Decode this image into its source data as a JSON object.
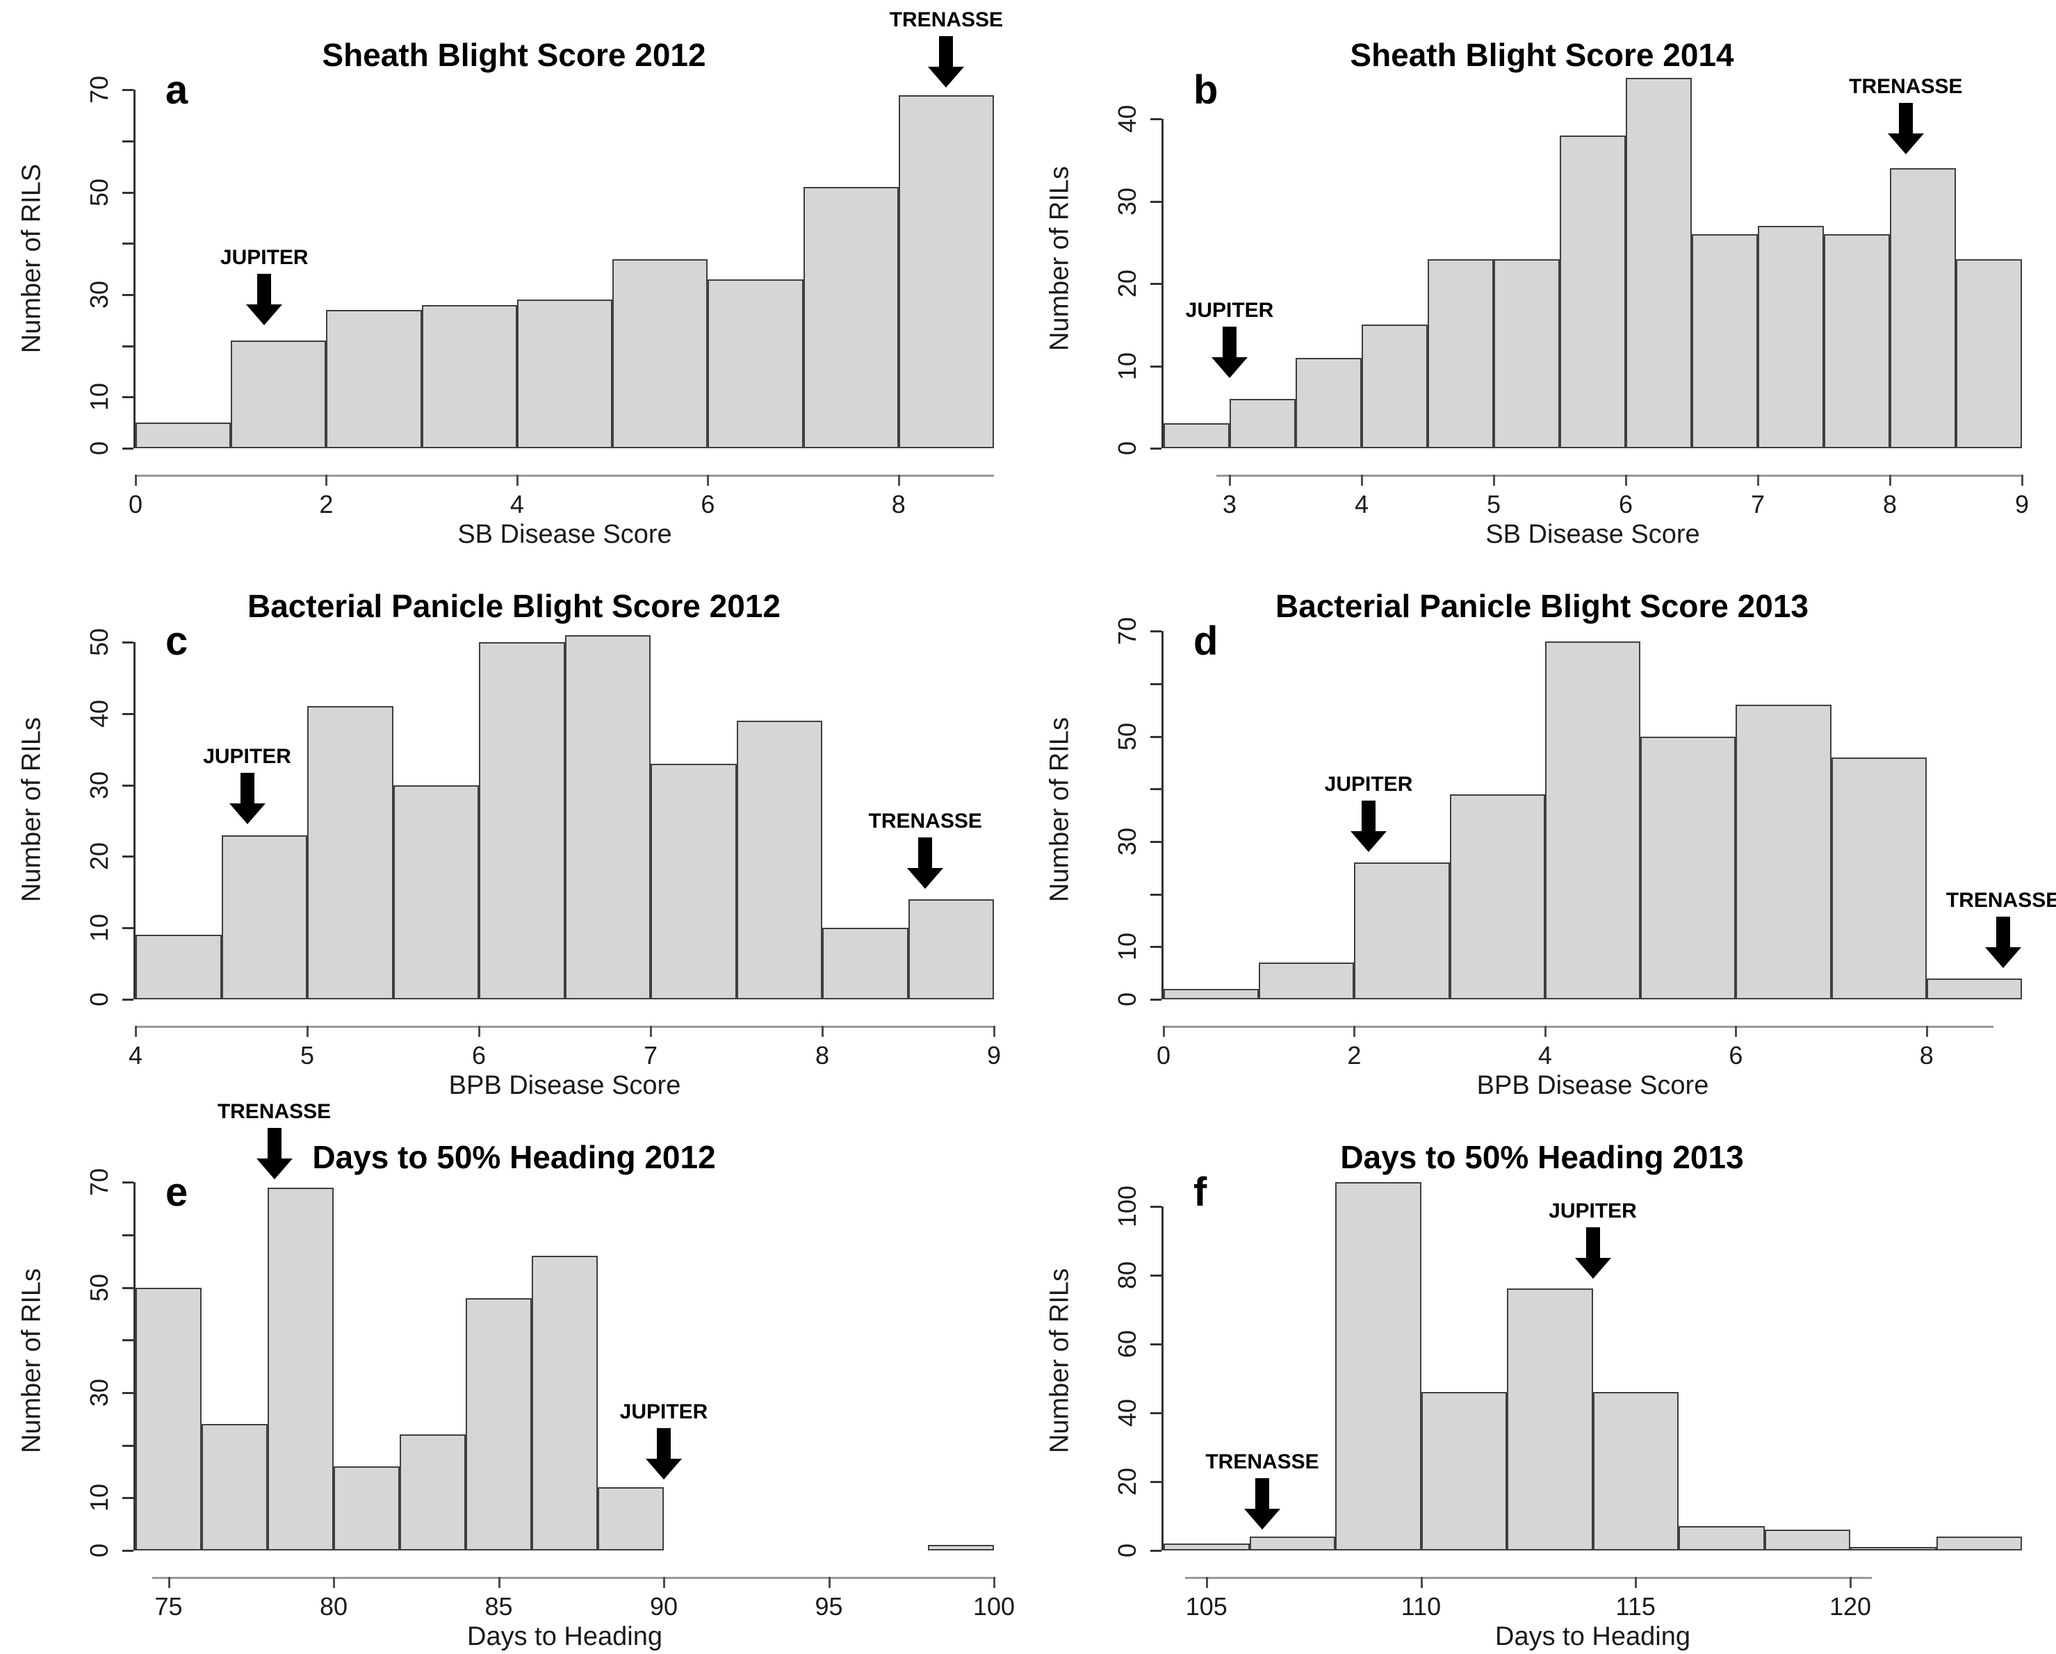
{
  "figure": {
    "background": "#ffffff",
    "bar_fill": "#d6d6d6",
    "bar_border": "#3f3f3f",
    "yaxis_color": "#333333",
    "xaxis_line_color": "#999999",
    "tick_color": "#4d4d4d",
    "text_color": "#000000",
    "annotation_color": "#000000"
  },
  "chart_data": [
    {
      "id": "a",
      "type": "bar",
      "letter": "a",
      "title": "Sheath Blight Score 2012",
      "xlabel": "SB Disease Score",
      "ylabel": "Number of RILS",
      "bin_start": 0,
      "bin_width": 1,
      "values": [
        5,
        21,
        27,
        28,
        29,
        37,
        33,
        51,
        69
      ],
      "xlim": [
        0,
        9
      ],
      "ylim": [
        0,
        74
      ],
      "xticks": [
        0,
        2,
        4,
        6,
        8
      ],
      "yticks": [
        0,
        10,
        20,
        30,
        40,
        50,
        60,
        70
      ],
      "ytick_labels": [
        "0",
        "10",
        "",
        "30",
        "",
        "50",
        "",
        "70"
      ],
      "xaxis_line": [
        0,
        9
      ],
      "grid": false,
      "annotations": [
        {
          "label": "JUPITER",
          "x": 1.35,
          "tip_y": 24
        },
        {
          "label": "TRENASSE",
          "x": 8.5,
          "tip_y": 70.5
        }
      ]
    },
    {
      "id": "b",
      "type": "bar",
      "letter": "b",
      "title": "Sheath Blight Score 2014",
      "xlabel": "SB Disease Score",
      "ylabel": "Number of RILs",
      "bin_start": 2.5,
      "bin_width": 0.5,
      "values": [
        3,
        6,
        11,
        15,
        23,
        23,
        38,
        45,
        26,
        27,
        26,
        34,
        23
      ],
      "xlim": [
        2.5,
        9
      ],
      "ylim": [
        0,
        46
      ],
      "xticks": [
        3,
        4,
        5,
        6,
        7,
        8,
        9
      ],
      "yticks": [
        0,
        10,
        20,
        30,
        40
      ],
      "ytick_labels": [
        "0",
        "10",
        "20",
        "30",
        "40"
      ],
      "xaxis_line": [
        2.9,
        9
      ],
      "grid": false,
      "annotations": [
        {
          "label": "JUPITER",
          "x": 3.0,
          "tip_y": 8.5
        },
        {
          "label": "TRENASSE",
          "x": 8.12,
          "tip_y": 35.7
        }
      ]
    },
    {
      "id": "c",
      "type": "bar",
      "letter": "c",
      "title": "Bacterial Panicle Blight Score 2012",
      "xlabel": "BPB Disease Score",
      "ylabel": "Number of RILs",
      "bin_start": 4,
      "bin_width": 0.5,
      "values": [
        9,
        23,
        41,
        30,
        50,
        51,
        33,
        39,
        10,
        14
      ],
      "xlim": [
        4,
        9
      ],
      "ylim": [
        0,
        53
      ],
      "xticks": [
        4,
        5,
        6,
        7,
        8,
        9
      ],
      "yticks": [
        0,
        10,
        20,
        30,
        40,
        50
      ],
      "ytick_labels": [
        "0",
        "10",
        "20",
        "30",
        "40",
        "50"
      ],
      "xaxis_line": [
        4,
        9
      ],
      "grid": false,
      "annotations": [
        {
          "label": "JUPITER",
          "x": 4.65,
          "tip_y": 24.5
        },
        {
          "label": "TRENASSE",
          "x": 8.6,
          "tip_y": 15.5
        }
      ]
    },
    {
      "id": "d",
      "type": "bar",
      "letter": "d",
      "title": "Bacterial Panicle Blight Score 2013",
      "xlabel": "BPB Disease Score",
      "ylabel": "Number of RILs",
      "bin_start": 0,
      "bin_width": 1,
      "values": [
        2,
        7,
        26,
        39,
        68,
        50,
        56,
        46,
        4
      ],
      "xlim": [
        0,
        9
      ],
      "ylim": [
        0,
        72
      ],
      "xticks": [
        0,
        2,
        4,
        6,
        8
      ],
      "yticks": [
        0,
        10,
        20,
        30,
        40,
        50,
        60,
        70
      ],
      "ytick_labels": [
        "0",
        "10",
        "",
        "30",
        "",
        "50",
        "",
        "70"
      ],
      "xaxis_line": [
        0,
        8.7
      ],
      "grid": false,
      "annotations": [
        {
          "label": "JUPITER",
          "x": 2.15,
          "tip_y": 28
        },
        {
          "label": "TRENASSE",
          "x": 8.8,
          "tip_y": 6
        }
      ]
    },
    {
      "id": "e",
      "type": "bar",
      "letter": "e",
      "title": "Days to 50% Heading 2012",
      "xlabel": "Days to Heading",
      "ylabel": "Number of RILs",
      "bin_start": 74,
      "bin_width": 2,
      "values": [
        50,
        24,
        69,
        16,
        22,
        48,
        56,
        12,
        0,
        0,
        0,
        0,
        1
      ],
      "xlim": [
        74,
        100
      ],
      "ylim": [
        0,
        72
      ],
      "xticks": [
        75,
        80,
        85,
        90,
        95,
        100
      ],
      "yticks": [
        0,
        10,
        20,
        30,
        40,
        50,
        60,
        70
      ],
      "ytick_labels": [
        "0",
        "10",
        "",
        "30",
        "",
        "50",
        "",
        "70"
      ],
      "xaxis_line": [
        74.5,
        100
      ],
      "grid": false,
      "annotations": [
        {
          "label": "TRENASSE",
          "x": 78.2,
          "tip_y": 70.5
        },
        {
          "label": "JUPITER",
          "x": 90,
          "tip_y": 13.5
        }
      ]
    },
    {
      "id": "f",
      "type": "bar",
      "letter": "f",
      "title": "Days to 50% Heading 2013",
      "xlabel": "Days to Heading",
      "ylabel": "Number of RILs",
      "bin_start": 104,
      "bin_width": 2,
      "values": [
        2,
        4,
        107,
        46,
        76,
        46,
        7,
        6,
        1,
        4
      ],
      "xlim": [
        104,
        124
      ],
      "ylim": [
        0,
        110
      ],
      "xticks": [
        105,
        110,
        115,
        120
      ],
      "yticks": [
        0,
        20,
        40,
        60,
        80,
        100
      ],
      "ytick_labels": [
        "0",
        "20",
        "40",
        "60",
        "80",
        "100"
      ],
      "xaxis_line": [
        104.5,
        120.5
      ],
      "grid": false,
      "annotations": [
        {
          "label": "TRENASSE",
          "x": 106.3,
          "tip_y": 6
        },
        {
          "label": "JUPITER",
          "x": 114,
          "tip_y": 79
        }
      ]
    }
  ]
}
